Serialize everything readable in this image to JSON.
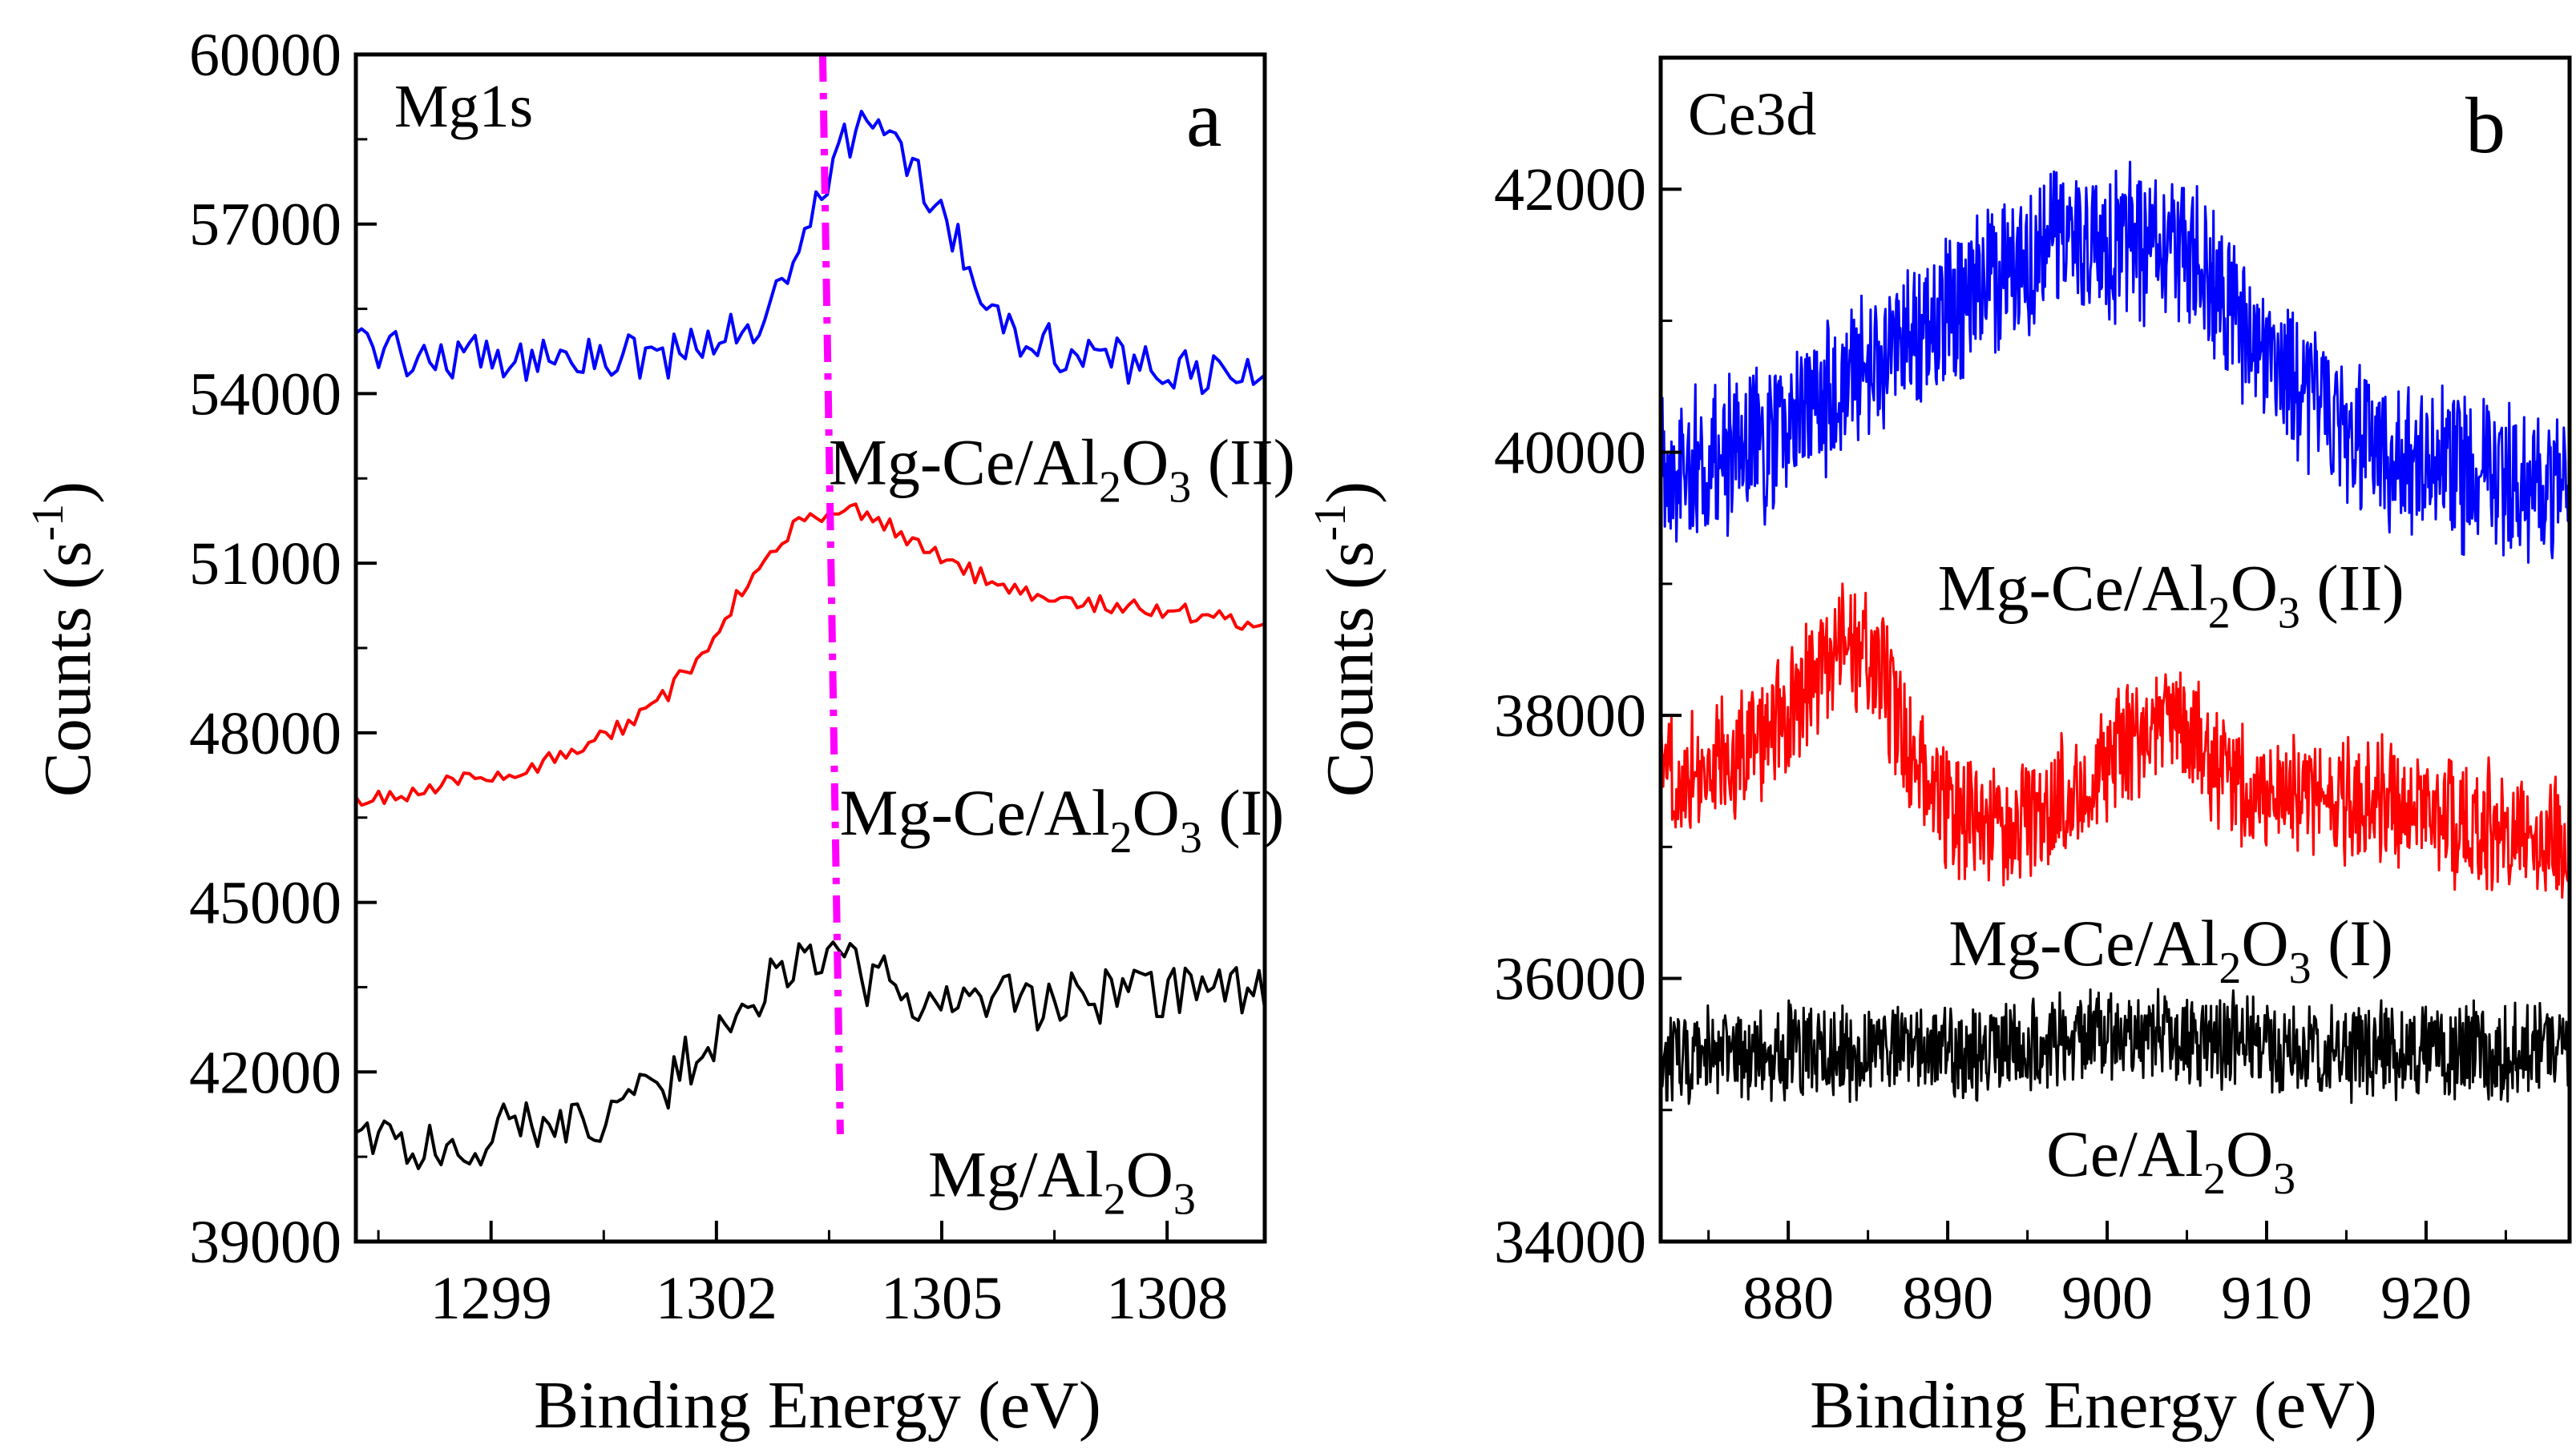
{
  "chart_data": [
    {
      "type": "line",
      "panel": "a",
      "title": "Mg1s",
      "panel_letter": "a",
      "xlabel": "Binding Energy (eV)",
      "ylabel_main": "Counts (s",
      "ylabel_sup": "-1",
      "ylabel_end": ")",
      "xlim": [
        1297.2,
        1309.3
      ],
      "ylim": [
        39000,
        60000
      ],
      "xticks": [
        1299,
        1302,
        1305,
        1308
      ],
      "yticks": [
        39000,
        42000,
        45000,
        48000,
        51000,
        54000,
        57000,
        60000
      ],
      "reference_line": {
        "x": 1303.5,
        "y_range": [
          40900,
          60000
        ],
        "color": "#ff00ff",
        "style": "dash-dot"
      },
      "series": [
        {
          "name": "Mg-Ce/Al2O3 (II)",
          "label_parts": [
            "Mg-Ce/Al",
            "2",
            "O",
            "3",
            " (II)"
          ],
          "label_anchor": {
            "x": 1306.6,
            "y": 52400
          },
          "color": "#0000ff",
          "x": [
            1297.2,
            1298.0,
            1298.5,
            1299.0,
            1299.5,
            1300.0,
            1300.5,
            1301.0,
            1301.5,
            1302.0,
            1302.3,
            1302.6,
            1302.9,
            1303.1,
            1303.3,
            1303.5,
            1303.7,
            1303.9,
            1304.1,
            1304.3,
            1304.6,
            1304.9,
            1305.2,
            1305.5,
            1305.8,
            1306.2,
            1306.6,
            1307.0,
            1307.5,
            1308.0,
            1308.5,
            1309.3
          ],
          "values": [
            55000,
            54700,
            54600,
            54650,
            54600,
            54700,
            54600,
            54700,
            54650,
            54900,
            55100,
            55300,
            56000,
            56800,
            57300,
            58000,
            58300,
            58600,
            58800,
            58600,
            58100,
            57500,
            56800,
            55800,
            55300,
            55000,
            54800,
            54700,
            54500,
            54400,
            54300,
            54400
          ],
          "noise": 380
        },
        {
          "name": "Mg-Ce/Al2O3 (I)",
          "label_parts": [
            "Mg-Ce/Al",
            "2",
            "O",
            "3",
            " (I)"
          ],
          "label_anchor": {
            "x": 1306.6,
            "y": 46200
          },
          "color": "#ff0000",
          "x": [
            1297.2,
            1298.0,
            1299.0,
            1300.0,
            1300.5,
            1301.0,
            1301.5,
            1302.0,
            1302.5,
            1303.0,
            1303.5,
            1303.8,
            1304.1,
            1304.5,
            1305.0,
            1305.5,
            1306.0,
            1306.5,
            1307.0,
            1307.5,
            1308.0,
            1308.5,
            1309.3
          ],
          "values": [
            46800,
            47000,
            47200,
            47600,
            47900,
            48300,
            48900,
            49800,
            50900,
            51600,
            51900,
            52000,
            51800,
            51400,
            51100,
            50800,
            50500,
            50400,
            50300,
            50200,
            50150,
            50100,
            49900
          ],
          "noise": 150
        },
        {
          "name": "Mg/Al2O3",
          "label_parts": [
            "Mg/Al",
            "2",
            "O",
            "3",
            ""
          ],
          "label_anchor": {
            "x": 1306.6,
            "y": 39800
          },
          "color": "#000000",
          "x": [
            1297.2,
            1298.0,
            1299.0,
            1300.0,
            1300.5,
            1301.0,
            1301.5,
            1302.0,
            1302.5,
            1303.0,
            1303.3,
            1303.6,
            1304.0,
            1304.5,
            1305.0,
            1306.0,
            1307.0,
            1308.0,
            1309.3
          ],
          "values": [
            40900,
            40600,
            40900,
            41100,
            41300,
            41600,
            42000,
            42600,
            43200,
            43800,
            44200,
            44000,
            43700,
            43300,
            43200,
            43300,
            43300,
            43400,
            43500
          ],
          "noise": 460
        }
      ]
    },
    {
      "type": "line",
      "panel": "b",
      "title": "Ce3d",
      "panel_letter": "b",
      "xlabel": "Binding Energy (eV)",
      "ylabel_main": "Counts (s",
      "ylabel_sup": "-1",
      "ylabel_end": ")",
      "xlim": [
        872,
        929
      ],
      "ylim": [
        34000,
        43000
      ],
      "xticks": [
        880,
        890,
        900,
        910,
        920
      ],
      "yticks": [
        34000,
        36000,
        38000,
        40000,
        42000
      ],
      "series": [
        {
          "name": "Mg-Ce/Al2O3 (II)",
          "label_parts": [
            "Mg-Ce/Al",
            "2",
            "O",
            "3",
            " (II)"
          ],
          "label_anchor": {
            "x": 904,
            "y": 38800
          },
          "color": "#0000ff",
          "x": [
            872,
            876,
            880,
            884,
            888,
            892,
            896,
            900,
            904,
            906,
            908,
            912,
            916,
            920,
            924,
            929
          ],
          "values": [
            39850,
            39950,
            40200,
            40500,
            40900,
            41250,
            41500,
            41600,
            41600,
            41400,
            41000,
            40500,
            40100,
            39900,
            39750,
            39700
          ],
          "noise": 520
        },
        {
          "name": "Mg-Ce/Al2O3 (I)",
          "label_parts": [
            "Mg-Ce/Al",
            "2",
            "O",
            "3",
            " (I)"
          ],
          "label_anchor": {
            "x": 904,
            "y": 36100
          },
          "color": "#ff0000",
          "x": [
            872,
            876,
            880,
            882,
            884,
            886,
            888,
            890,
            893,
            896,
            899,
            902,
            904,
            906,
            908,
            912,
            916,
            920,
            924,
            929
          ],
          "values": [
            37550,
            37650,
            38000,
            38350,
            38550,
            38300,
            37600,
            37250,
            37150,
            37250,
            37550,
            37850,
            38000,
            37700,
            37450,
            37400,
            37350,
            37250,
            37150,
            37000
          ],
          "noise": 420
        },
        {
          "name": "Ce/Al2O3",
          "label_parts": [
            "Ce/Al",
            "2",
            "O",
            "3",
            ""
          ],
          "label_anchor": {
            "x": 904,
            "y": 34500
          },
          "color": "#000000",
          "x": [
            872,
            880,
            890,
            896,
            900,
            904,
            910,
            920,
            929
          ],
          "values": [
            35400,
            35420,
            35450,
            35500,
            35580,
            35560,
            35480,
            35450,
            35450
          ],
          "noise": 320
        }
      ]
    }
  ]
}
